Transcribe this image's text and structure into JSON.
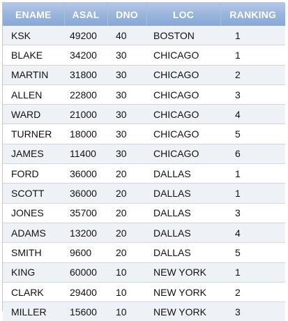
{
  "table": {
    "columns": [
      "ENAME",
      "ASAL",
      "DNO",
      "LOC",
      "RANKING"
    ],
    "rows": [
      [
        "KSK",
        "49200",
        "40",
        "BOSTON",
        "1"
      ],
      [
        "BLAKE",
        "34200",
        "30",
        "CHICAGO",
        "1"
      ],
      [
        "MARTIN",
        "31800",
        "30",
        "CHICAGO",
        "2"
      ],
      [
        "ALLEN",
        "22800",
        "30",
        "CHICAGO",
        "3"
      ],
      [
        "WARD",
        "21000",
        "30",
        "CHICAGO",
        "4"
      ],
      [
        "TURNER",
        "18000",
        "30",
        "CHICAGO",
        "5"
      ],
      [
        "JAMES",
        "11400",
        "30",
        "CHICAGO",
        "6"
      ],
      [
        "FORD",
        "36000",
        "20",
        "DALLAS",
        "1"
      ],
      [
        "SCOTT",
        "36000",
        "20",
        "DALLAS",
        "1"
      ],
      [
        "JONES",
        "35700",
        "20",
        "DALLAS",
        "3"
      ],
      [
        "ADAMS",
        "13200",
        "20",
        "DALLAS",
        "4"
      ],
      [
        "SMITH",
        "9600",
        "20",
        "DALLAS",
        "5"
      ],
      [
        "KING",
        "60000",
        "10",
        "NEW YORK",
        "1"
      ],
      [
        "CLARK",
        "29400",
        "10",
        "NEW YORK",
        "2"
      ],
      [
        "MILLER",
        "15600",
        "10",
        "NEW YORK",
        "3"
      ]
    ]
  },
  "colors": {
    "header_gradient_top": "#b4c8e6",
    "header_gradient_bottom": "#88a7d3",
    "header_text": "#ffffff",
    "row_odd": "#eef1f6",
    "row_even": "#ffffff",
    "row_divider": "#cfd6df"
  }
}
